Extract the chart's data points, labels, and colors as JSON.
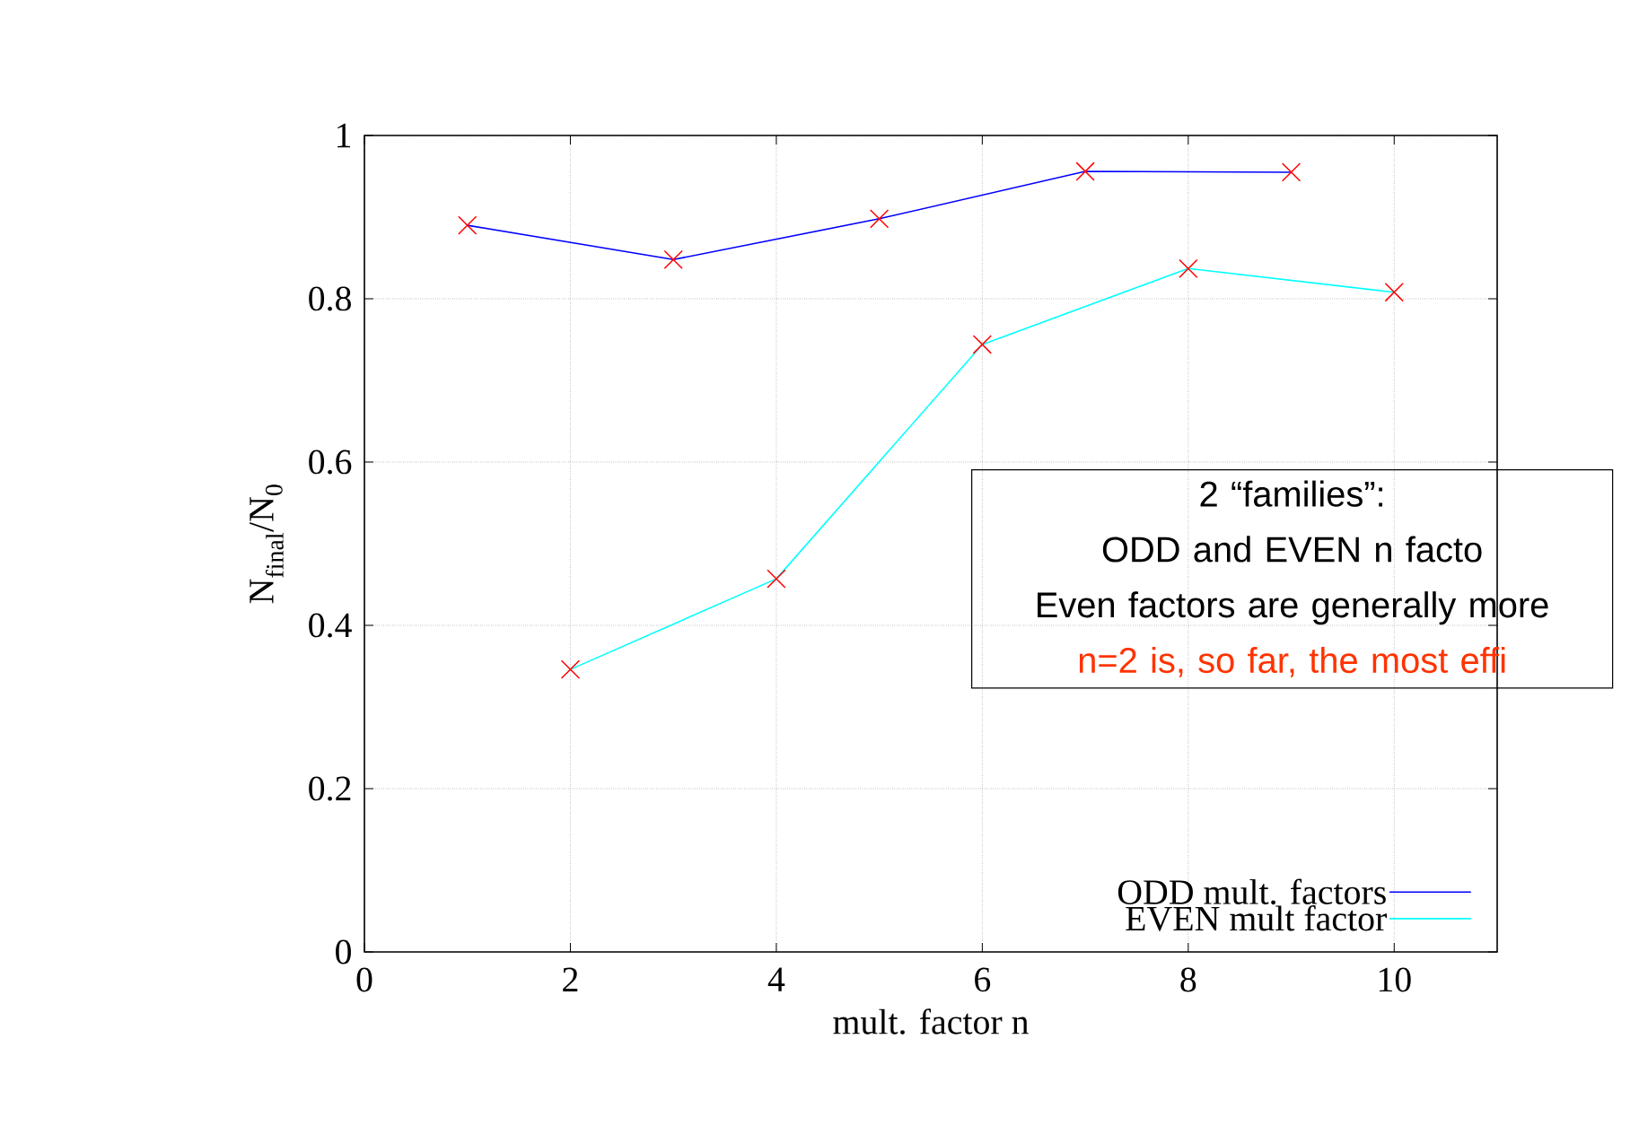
{
  "chart_data": {
    "type": "line",
    "xlabel": "mult. factor n",
    "ylabel": "N$_{final}$/N$_{0}$",
    "xlim": [
      0,
      11
    ],
    "xticks": [
      0,
      2,
      4,
      6,
      8,
      10
    ],
    "ylim": [
      0,
      1
    ],
    "yticks": [
      0,
      0.2,
      0.4,
      0.6,
      0.8,
      1
    ],
    "grid": true,
    "legend": "bottom right",
    "marker": "cross",
    "line_style": "solid",
    "series": [
      {
        "name": "ODD mult. factors",
        "color": "#0000ff",
        "x": [
          1,
          3,
          5,
          7,
          9
        ],
        "values": [
          0.89,
          0.848,
          0.898,
          0.956,
          0.955
        ]
      },
      {
        "name": "EVEN mult factor",
        "color": "#00ffff",
        "x": [
          2,
          4,
          6,
          8,
          10
        ],
        "values": [
          0.346,
          0.457,
          0.744,
          0.837,
          0.808
        ]
      }
    ],
    "annotations": [
      "2 “families”:",
      "ODD and EVEN n facto",
      "Even factors are generally more",
      "n=2 is, so far, the most effi"
    ]
  }
}
